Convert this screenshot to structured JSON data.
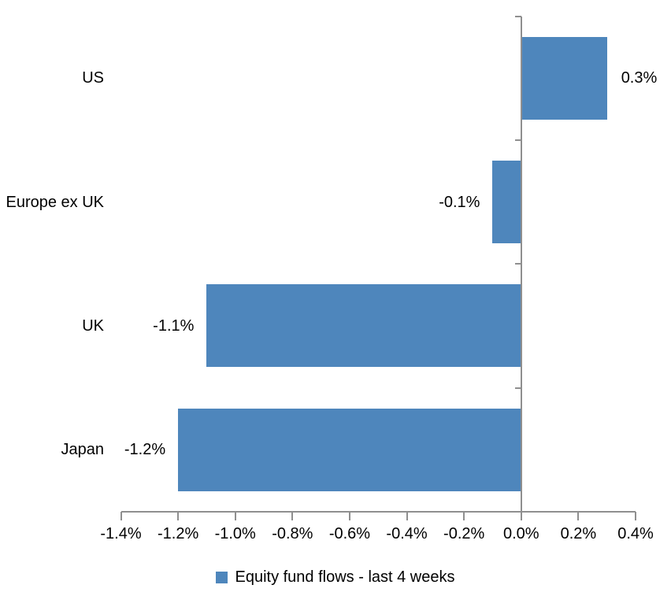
{
  "chart_data": {
    "type": "bar",
    "orientation": "horizontal",
    "title": "",
    "xlabel": "",
    "ylabel": "",
    "categories": [
      "US",
      "Europe ex UK",
      "UK",
      "Japan"
    ],
    "values": [
      0.3,
      -0.1,
      -1.1,
      -1.2
    ],
    "value_labels": [
      "0.3%",
      "-0.1%",
      "-1.1%",
      "-1.2%"
    ],
    "xlim": [
      -1.4,
      0.4
    ],
    "x_tick_values": [
      -1.4,
      -1.2,
      -1.0,
      -0.8,
      -0.6,
      -0.4,
      -0.2,
      0.0,
      0.2,
      0.4
    ],
    "x_tick_labels": [
      "-1.4%",
      "-1.2%",
      "-1.0%",
      "-0.8%",
      "-0.6%",
      "-0.4%",
      "-0.2%",
      "0.0%",
      "0.2%",
      "0.4%"
    ],
    "grid": false,
    "legend_position": "bottom",
    "legend": [
      {
        "label": "Equity fund flows - last 4 weeks",
        "color": "#4E86BC"
      }
    ],
    "bar_color": "#4E86BC",
    "axis_color": "#8F8F8F",
    "text_color": "#000000"
  }
}
